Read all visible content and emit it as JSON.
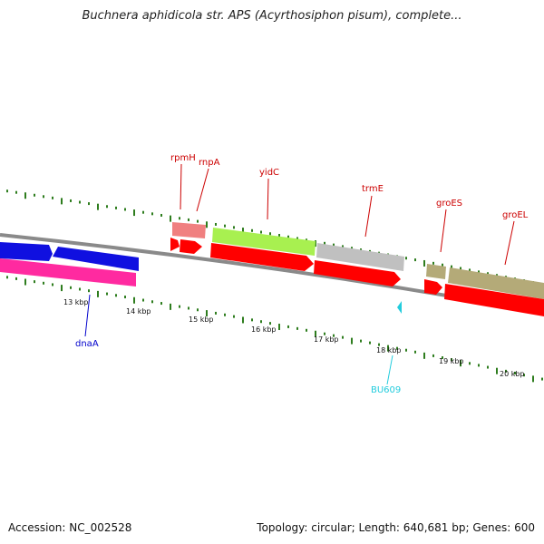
{
  "header": {
    "title": "Buchnera aphidicola str. APS (Acyrthosiphon pisum), complete..."
  },
  "footer": {
    "accession": "Accession: NC_002528",
    "summary": "Topology: circular; Length: 640,681 bp; Genes: 600"
  },
  "colors": {
    "backbone": "#8a8a8a",
    "tick": "#2e7d1e",
    "cds": "#ff0000",
    "gene_label": "#cc0000",
    "dnaA": "#1010e0",
    "dnaA_cds": "#ff2aa0",
    "rRNA_pink": "#f08080",
    "yidC": "#a8f050",
    "trmE": "#c0c0c0",
    "groES": "#b4aa78",
    "bu609": "#22ccdd"
  },
  "map": {
    "scale_labels": [
      "13 kbp",
      "14 kbp",
      "15 kbp",
      "16 kbp",
      "17 kbp",
      "18 kbp",
      "19 kbp",
      "20 kbp"
    ],
    "gene_labels": [
      {
        "name": "rpmH",
        "color": "#cc0000"
      },
      {
        "name": "rnpA",
        "color": "#cc0000"
      },
      {
        "name": "yidC",
        "color": "#cc0000"
      },
      {
        "name": "trmE",
        "color": "#cc0000"
      },
      {
        "name": "groES",
        "color": "#cc0000"
      },
      {
        "name": "groEL",
        "color": "#cc0000"
      },
      {
        "name": "dnaA",
        "color": "#0000cc"
      },
      {
        "name": "BU609",
        "color": "#22ccdd"
      }
    ]
  }
}
